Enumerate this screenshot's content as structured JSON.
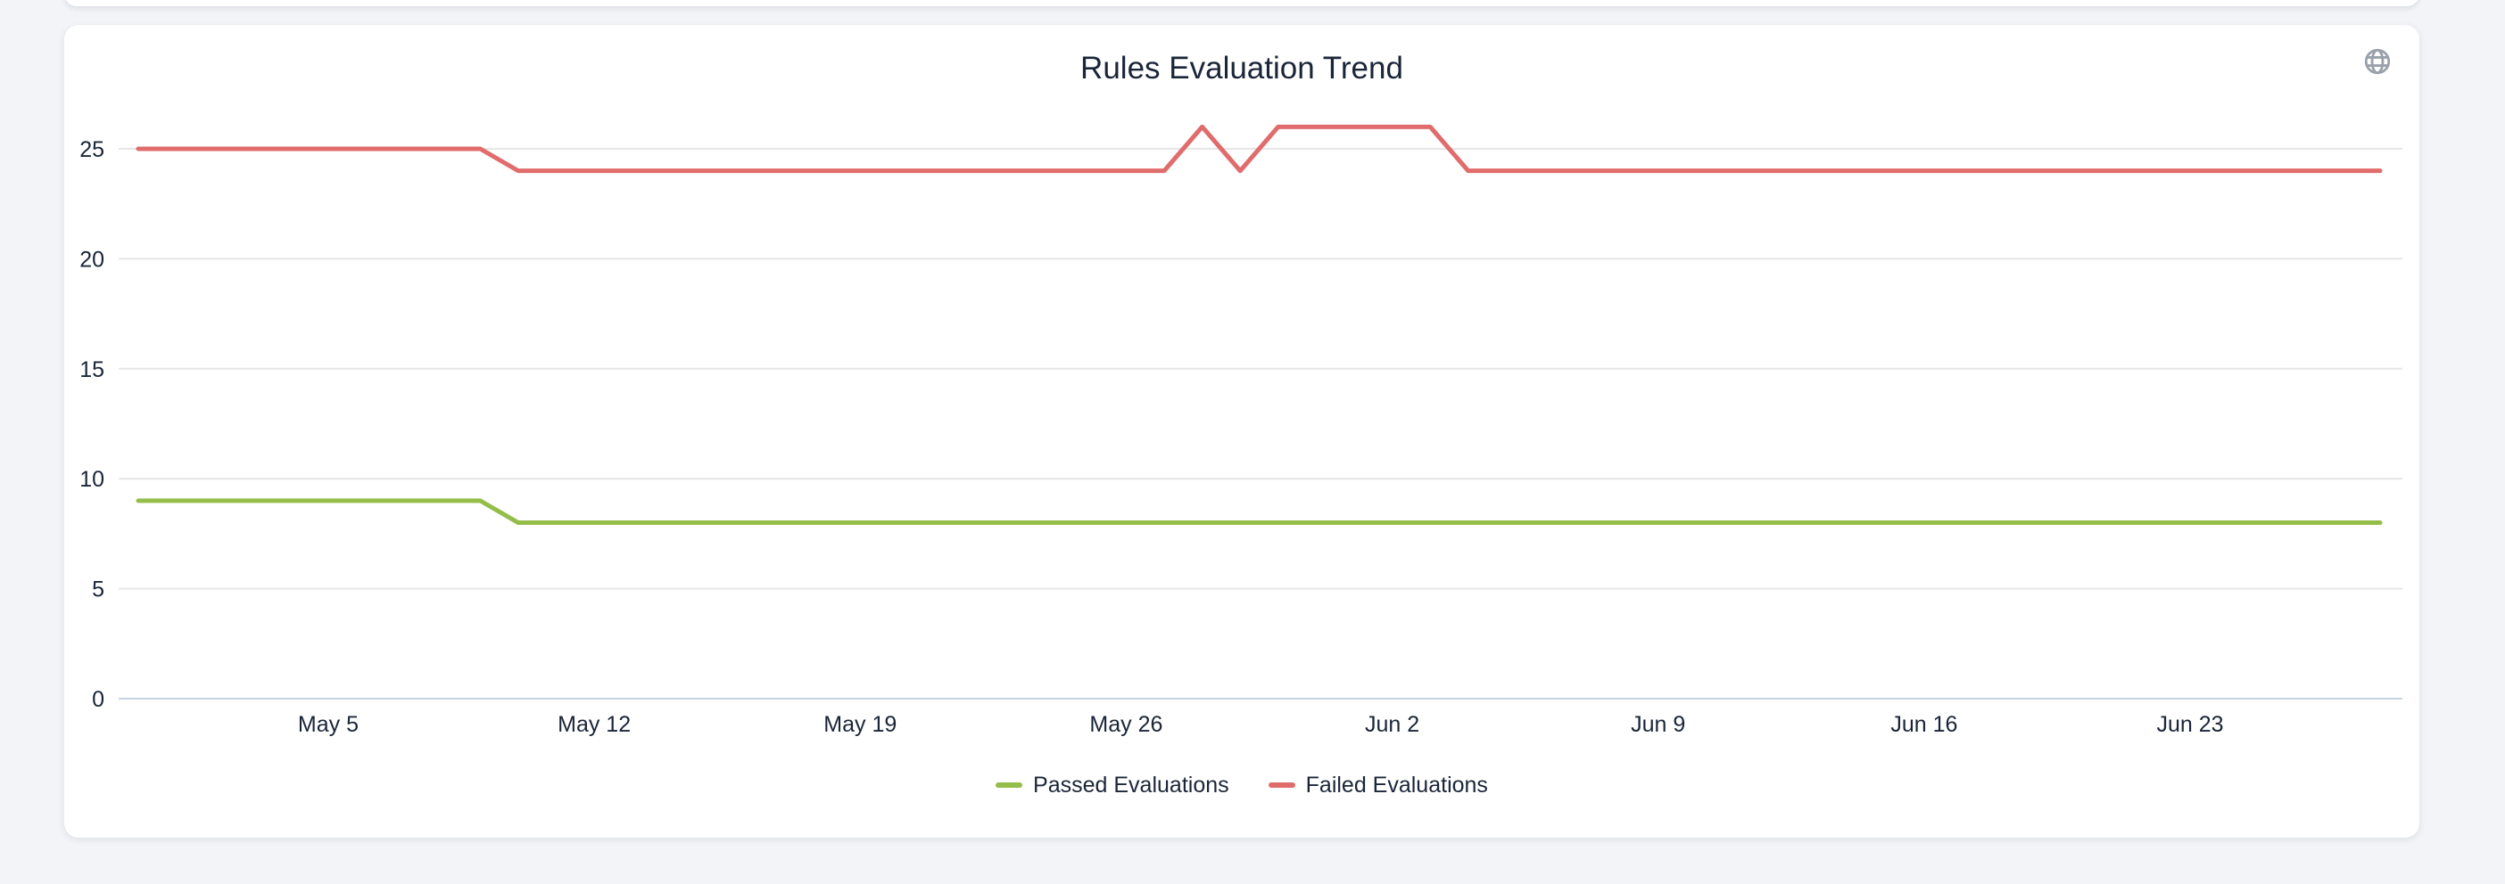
{
  "page": {
    "background_color": "#f2f4f7"
  },
  "card": {
    "background_color": "#ffffff"
  },
  "header": {
    "globe_icon_color": "#9aa1ab"
  },
  "chart_data": {
    "type": "line",
    "title": "Rules Evaluation Trend",
    "x": [
      "Apr 30",
      "May 1",
      "May 2",
      "May 3",
      "May 4",
      "May 5",
      "May 6",
      "May 7",
      "May 8",
      "May 9",
      "May 10",
      "May 11",
      "May 12",
      "May 13",
      "May 14",
      "May 15",
      "May 16",
      "May 17",
      "May 18",
      "May 19",
      "May 20",
      "May 21",
      "May 22",
      "May 23",
      "May 24",
      "May 25",
      "May 26",
      "May 27",
      "May 28",
      "May 29",
      "May 30",
      "May 31",
      "Jun 1",
      "Jun 2",
      "Jun 3",
      "Jun 4",
      "Jun 5",
      "Jun 6",
      "Jun 7",
      "Jun 8",
      "Jun 9",
      "Jun 10",
      "Jun 11",
      "Jun 12",
      "Jun 13",
      "Jun 14",
      "Jun 15",
      "Jun 16",
      "Jun 17",
      "Jun 18",
      "Jun 19",
      "Jun 20",
      "Jun 21",
      "Jun 22",
      "Jun 23",
      "Jun 24",
      "Jun 25",
      "Jun 26",
      "Jun 27",
      "Jun 28"
    ],
    "series": [
      {
        "name": "Passed Evaluations",
        "color": "#94bd4a",
        "values": [
          9,
          9,
          9,
          9,
          9,
          9,
          9,
          9,
          9,
          9,
          8,
          8,
          8,
          8,
          8,
          8,
          8,
          8,
          8,
          8,
          8,
          8,
          8,
          8,
          8,
          8,
          8,
          8,
          8,
          8,
          8,
          8,
          8,
          8,
          8,
          8,
          8,
          8,
          8,
          8,
          8,
          8,
          8,
          8,
          8,
          8,
          8,
          8,
          8,
          8,
          8,
          8,
          8,
          8,
          8,
          8,
          8,
          8,
          8,
          8
        ]
      },
      {
        "name": "Failed Evaluations",
        "color": "#e06c6c",
        "values": [
          25,
          25,
          25,
          25,
          25,
          25,
          25,
          25,
          25,
          25,
          24,
          24,
          24,
          24,
          24,
          24,
          24,
          24,
          24,
          24,
          24,
          24,
          24,
          24,
          24,
          24,
          24,
          24,
          26,
          24,
          26,
          26,
          26,
          26,
          26,
          24,
          24,
          24,
          24,
          24,
          24,
          24,
          24,
          24,
          24,
          24,
          24,
          24,
          24,
          24,
          24,
          24,
          24,
          24,
          24,
          24,
          24,
          24,
          24,
          24
        ]
      }
    ],
    "y_ticks": [
      0,
      5,
      10,
      15,
      20,
      25
    ],
    "ylim": [
      0,
      27
    ],
    "x_ticks": [
      {
        "index": 5,
        "label": "May 5"
      },
      {
        "index": 12,
        "label": "May 12"
      },
      {
        "index": 19,
        "label": "May 19"
      },
      {
        "index": 26,
        "label": "May 26"
      },
      {
        "index": 33,
        "label": "Jun 2"
      },
      {
        "index": 40,
        "label": "Jun 9"
      },
      {
        "index": 47,
        "label": "Jun 16"
      },
      {
        "index": 54,
        "label": "Jun 23"
      }
    ],
    "grid": true,
    "legend_position": "bottom",
    "colors": {
      "grid": "#e6e6e6",
      "axis_line": "#c9d3e6",
      "label_text": "#1a2538"
    }
  }
}
